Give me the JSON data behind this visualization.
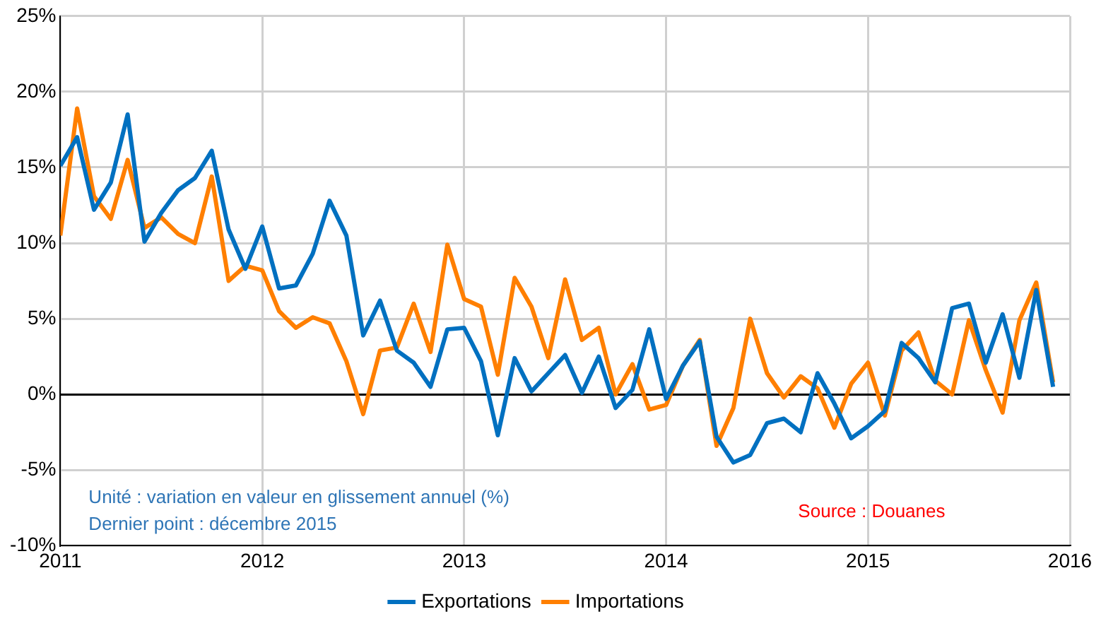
{
  "chart_data": {
    "type": "line",
    "x": [
      "2011-01",
      "2011-02",
      "2011-03",
      "2011-04",
      "2011-05",
      "2011-06",
      "2011-07",
      "2011-08",
      "2011-09",
      "2011-10",
      "2011-11",
      "2011-12",
      "2012-01",
      "2012-02",
      "2012-03",
      "2012-04",
      "2012-05",
      "2012-06",
      "2012-07",
      "2012-08",
      "2012-09",
      "2012-10",
      "2012-11",
      "2012-12",
      "2013-01",
      "2013-02",
      "2013-03",
      "2013-04",
      "2013-05",
      "2013-06",
      "2013-07",
      "2013-08",
      "2013-09",
      "2013-10",
      "2013-11",
      "2013-12",
      "2014-01",
      "2014-02",
      "2014-03",
      "2014-04",
      "2014-05",
      "2014-06",
      "2014-07",
      "2014-08",
      "2014-09",
      "2014-10",
      "2014-11",
      "2014-12",
      "2015-01",
      "2015-02",
      "2015-03",
      "2015-04",
      "2015-05",
      "2015-06",
      "2015-07",
      "2015-08",
      "2015-09",
      "2015-10",
      "2015-11",
      "2015-12"
    ],
    "series": [
      {
        "name": "Exportations",
        "color": "#0070c0",
        "values": [
          15.1,
          17.0,
          12.2,
          14.0,
          18.5,
          10.1,
          12.0,
          13.5,
          14.3,
          16.1,
          10.9,
          8.3,
          11.1,
          7.0,
          7.2,
          9.3,
          12.8,
          10.5,
          3.9,
          6.2,
          2.9,
          2.1,
          0.5,
          4.3,
          4.4,
          2.2,
          -2.7,
          2.4,
          0.2,
          1.4,
          2.6,
          0.1,
          2.5,
          -0.9,
          0.3,
          4.3,
          -0.3,
          1.9,
          3.5,
          -2.8,
          -4.5,
          -4.0,
          -1.9,
          -1.6,
          -2.5,
          1.4,
          -0.6,
          -2.9,
          -2.1,
          -1.1,
          3.4,
          2.4,
          0.8,
          5.7,
          6.0,
          2.1,
          5.3,
          1.1,
          6.9,
          0.5
        ]
      },
      {
        "name": "Importations",
        "color": "#ff7f00",
        "values": [
          10.5,
          18.9,
          13.1,
          11.6,
          15.5,
          11.0,
          11.7,
          10.6,
          10.0,
          14.4,
          7.5,
          8.5,
          8.2,
          5.5,
          4.4,
          5.1,
          4.7,
          2.2,
          -1.3,
          2.9,
          3.1,
          6.0,
          2.8,
          9.9,
          6.3,
          5.8,
          1.3,
          7.7,
          5.8,
          2.4,
          7.6,
          3.6,
          4.4,
          0.0,
          2.0,
          -1.0,
          -0.7,
          1.9,
          3.6,
          -3.4,
          -0.9,
          5.0,
          1.4,
          -0.2,
          1.2,
          0.4,
          -2.2,
          0.7,
          2.1,
          -1.4,
          2.9,
          4.1,
          0.9,
          0.0,
          4.9,
          1.6,
          -1.2,
          4.9,
          7.4,
          0.8
        ]
      }
    ],
    "xlim": [
      "2011-01",
      "2016-01"
    ],
    "xticks": [
      "2011",
      "2012",
      "2013",
      "2014",
      "2015",
      "2016"
    ],
    "ylim": [
      -10,
      25
    ],
    "yticks": [
      {
        "value": -10,
        "label": "-10%"
      },
      {
        "value": -5,
        "label": "-5%"
      },
      {
        "value": 0,
        "label": "0%"
      },
      {
        "value": 5,
        "label": "5%"
      },
      {
        "value": 10,
        "label": "10%"
      },
      {
        "value": 15,
        "label": "15%"
      },
      {
        "value": 20,
        "label": "20%"
      },
      {
        "value": 25,
        "label": "25%"
      }
    ],
    "grid": true,
    "legend": "bottom",
    "marker": "none",
    "line_style": "solid",
    "annotations": [
      "Unité : variation en valeur en glissement annuel (%)",
      "Dernier point : décembre 2015",
      "Source : Douanes"
    ]
  }
}
